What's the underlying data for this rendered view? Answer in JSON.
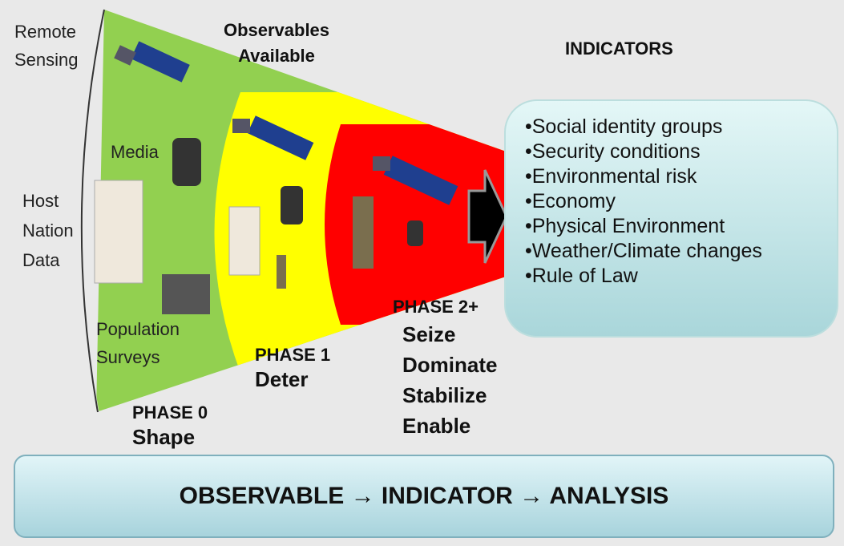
{
  "header": {
    "observables": "Observables Available",
    "indicators_title": "INDICATORS"
  },
  "sources": [
    "Remote Sensing",
    "Media",
    "Host Nation Data",
    "Population Surveys"
  ],
  "phases": [
    {
      "label": "PHASE 0",
      "actions": [
        "Shape"
      ]
    },
    {
      "label": "PHASE 1",
      "actions": [
        "Deter"
      ]
    },
    {
      "label": "PHASE 2+",
      "actions": [
        "Seize",
        "Dominate",
        "Stabilize",
        "Enable"
      ]
    }
  ],
  "indicators": [
    "•Social identity groups",
    "•Security conditions",
    "•Environmental risk",
    "•Economy",
    "•Physical Environment",
    "•Weather/Climate changes",
    "•Rule of Law"
  ],
  "footer": "OBSERVABLE → INDICATOR → ANALYSIS"
}
